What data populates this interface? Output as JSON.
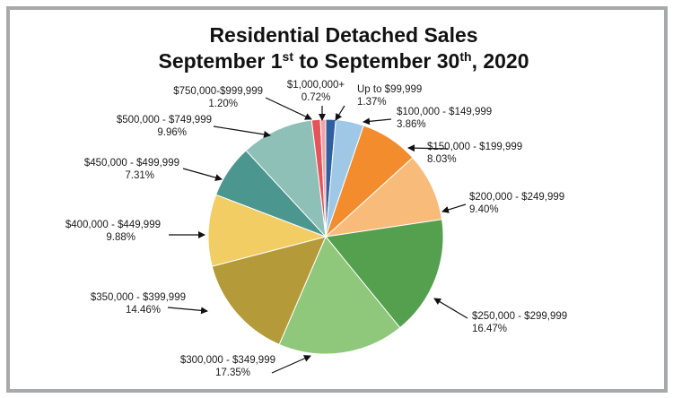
{
  "chart_data": {
    "type": "pie",
    "title": {
      "line1": "Residential Detached Sales",
      "line2_part1": "September 1",
      "line2_sup1": "st",
      "line2_part2": " to September 30",
      "line2_sup2": "th",
      "line2_part3": ", 2020"
    },
    "slices": [
      {
        "label": "Up to $99,999",
        "percent_text": "1.37%",
        "value": 1.37,
        "color": "#2f5f9f"
      },
      {
        "label": "$100,000 - $149,999",
        "percent_text": "3.86%",
        "value": 3.86,
        "color": "#9fc8e6"
      },
      {
        "label": "$150,000 - $199,999",
        "percent_text": "8.03%",
        "value": 8.03,
        "color": "#f28c2c"
      },
      {
        "label": "$200,000 - $249,999",
        "percent_text": "9.40%",
        "value": 9.4,
        "color": "#f9bb79"
      },
      {
        "label": "$250,000 - $299,999",
        "percent_text": "16.47%",
        "value": 16.47,
        "color": "#55a04f"
      },
      {
        "label": "$300,000 - $349,999",
        "percent_text": "17.35%",
        "value": 17.35,
        "color": "#8fc77b"
      },
      {
        "label": "$350,000 - $399,999",
        "percent_text": "14.46%",
        "value": 14.46,
        "color": "#b59a3a"
      },
      {
        "label": "$400,000 - $449,999",
        "percent_text": "9.88%",
        "value": 9.88,
        "color": "#f2cd63"
      },
      {
        "label": "$450,000 - $499,999",
        "percent_text": "7.31%",
        "value": 7.31,
        "color": "#4b978f"
      },
      {
        "label": "$500,000 - $749,999",
        "percent_text": "9.96%",
        "value": 9.96,
        "color": "#8fc0b8"
      },
      {
        "label": "$750,000-$999,999",
        "percent_text": "1.20%",
        "value": 1.2,
        "color": "#e6545b"
      },
      {
        "label": "$1,000,000+",
        "percent_text": "0.72%",
        "value": 0.72,
        "color": "#f4a3a3"
      }
    ]
  }
}
